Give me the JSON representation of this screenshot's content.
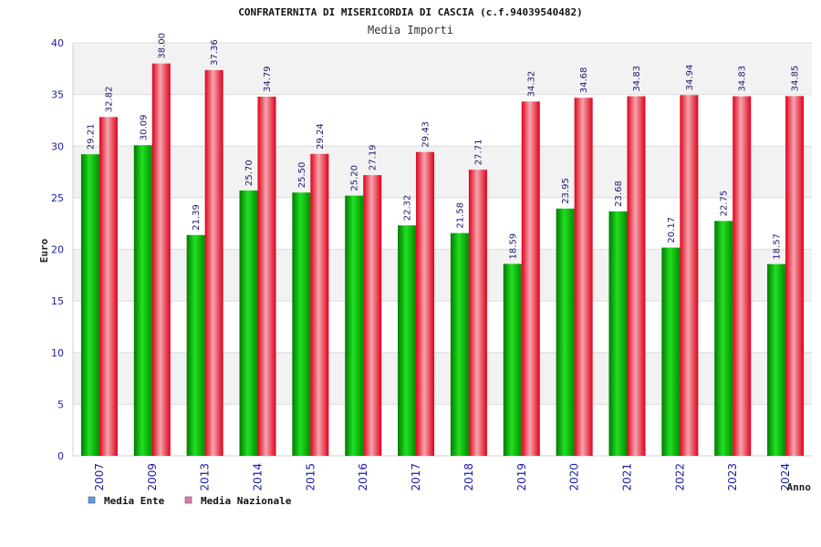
{
  "chart_data": {
    "type": "bar",
    "title": "CONFRATERNITA DI MISERICORDIA DI CASCIA (c.f.94039540482)",
    "subtitle": "Media Importi",
    "ylabel": "Euro",
    "xlabel": "Anno",
    "ylim": [
      0,
      40
    ],
    "yticks": [
      0,
      5,
      10,
      15,
      20,
      25,
      30,
      35,
      40
    ],
    "categories": [
      "2007",
      "2009",
      "2013",
      "2014",
      "2015",
      "2016",
      "2017",
      "2018",
      "2019",
      "2020",
      "2021",
      "2022",
      "2023",
      "2024"
    ],
    "series": [
      {
        "name": "Media Ente",
        "color": "#00b000",
        "values": [
          29.21,
          30.09,
          21.39,
          25.7,
          25.5,
          25.2,
          22.32,
          21.58,
          18.59,
          23.95,
          23.68,
          20.17,
          22.75,
          18.57
        ],
        "labels": [
          "29.21",
          "30.09",
          "21.39",
          "25.70",
          "25.50",
          "25.20",
          "22.32",
          "21.58",
          "18.59",
          "23.95",
          "23.68",
          "20.17",
          "22.75",
          "18.57"
        ]
      },
      {
        "name": "Media Nazionale",
        "color": "#e8001c",
        "values": [
          32.82,
          38.0,
          37.36,
          34.79,
          29.24,
          27.19,
          29.43,
          27.71,
          34.32,
          34.68,
          34.83,
          34.94,
          34.83,
          34.85
        ],
        "labels": [
          "32.82",
          "38.00",
          "37.36",
          "34.79",
          "29.24",
          "27.19",
          "29.43",
          "27.71",
          "34.32",
          "34.68",
          "34.83",
          "34.94",
          "34.83",
          "34.85"
        ]
      }
    ],
    "legend": [
      {
        "label": "Media Ente",
        "color": "#5b9bf0"
      },
      {
        "label": "Media Nazionale",
        "color": "#e07aa8"
      }
    ],
    "grid": true,
    "legend_position": "bottom-left"
  }
}
